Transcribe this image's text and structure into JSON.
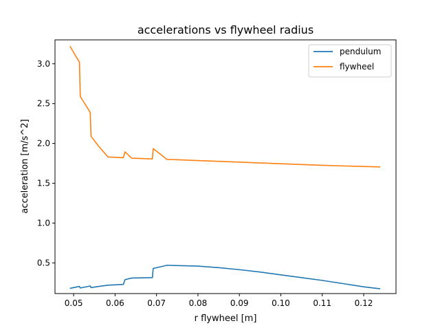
{
  "chart_data": {
    "type": "line",
    "title": "accelerations vs flywheel radius",
    "xlabel": "r flywheel [m]",
    "ylabel": "acceleration [m/s^2]",
    "xlim": [
      0.0455,
      0.1278
    ],
    "ylim": [
      0.115,
      3.3
    ],
    "xticks": [
      0.05,
      0.06,
      0.07,
      0.08,
      0.09,
      0.1,
      0.11,
      0.12
    ],
    "xtick_labels": [
      "0.05",
      "0.06",
      "0.07",
      "0.08",
      "0.09",
      "0.10",
      "0.11",
      "0.12"
    ],
    "yticks": [
      0.5,
      1.0,
      1.5,
      2.0,
      2.5,
      3.0
    ],
    "ytick_labels": [
      "0.5",
      "1.0",
      "1.5",
      "2.0",
      "2.5",
      "3.0"
    ],
    "grid": false,
    "legend": "top-right",
    "series": [
      {
        "name": "pendulum",
        "color": "#1f77b4",
        "x": [
          0.0491,
          0.0514,
          0.0516,
          0.054,
          0.0542,
          0.0561,
          0.0583,
          0.062,
          0.0624,
          0.064,
          0.069,
          0.0692,
          0.0725,
          0.08,
          0.085,
          0.09,
          0.095,
          0.1,
          0.105,
          0.11,
          0.115,
          0.12,
          0.124
        ],
        "y": [
          0.18,
          0.205,
          0.185,
          0.21,
          0.19,
          0.205,
          0.22,
          0.23,
          0.29,
          0.31,
          0.315,
          0.43,
          0.47,
          0.46,
          0.44,
          0.415,
          0.385,
          0.35,
          0.315,
          0.28,
          0.24,
          0.2,
          0.175
        ]
      },
      {
        "name": "flywheel",
        "color": "#ff7f0e",
        "x": [
          0.0491,
          0.0514,
          0.0516,
          0.054,
          0.0542,
          0.0561,
          0.0583,
          0.062,
          0.0624,
          0.064,
          0.069,
          0.0692,
          0.0725,
          0.08,
          0.09,
          0.1,
          0.11,
          0.12,
          0.124
        ],
        "y": [
          3.22,
          3.02,
          2.59,
          2.39,
          2.09,
          1.96,
          1.83,
          1.82,
          1.895,
          1.815,
          1.805,
          1.935,
          1.8,
          1.785,
          1.765,
          1.745,
          1.725,
          1.71,
          1.705
        ]
      }
    ]
  }
}
